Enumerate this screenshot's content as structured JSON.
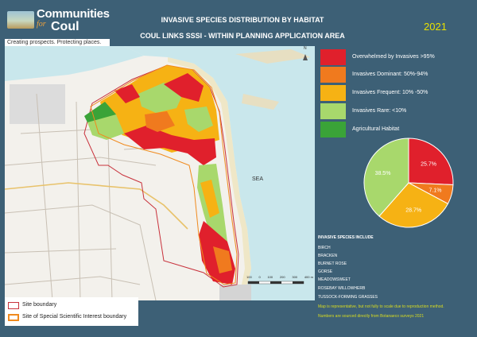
{
  "logo": {
    "title": "Communities",
    "for": "for",
    "coul": "Coul",
    "tagline": "Creating prospects. Protecting places."
  },
  "title_line1": "INVASIVE SPECIES DISTRIBUTION BY HABITAT",
  "title_line2": "COUL LINKS SSSI - WITHIN PLANNING APPLICATION AREA",
  "year": "2021",
  "map": {
    "sea_label": "SEA",
    "north_label": "N",
    "scale_ticks": [
      "100",
      "0",
      "100",
      "200",
      "300",
      "400 m"
    ]
  },
  "boundary_legend": [
    {
      "label": "Site boundary",
      "color": "#c8323c"
    },
    {
      "label": "Site of Special Scientific Interest boundary",
      "color": "#f08a1e"
    }
  ],
  "habitat_legend": [
    {
      "label": "Overwhelmed by Invasives >95%",
      "color": "#e0202c"
    },
    {
      "label": "Invasives Dominant: 50%-94%",
      "color": "#f07a1e"
    },
    {
      "label": "Invasives Frequent: 10% -50%",
      "color": "#f6b214"
    },
    {
      "label": "Invasives Rare: <10%",
      "color": "#a8d86c"
    },
    {
      "label": "Agricultural Habitat",
      "color": "#3aa338"
    }
  ],
  "chart_data": {
    "type": "pie",
    "categories": [
      "Overwhelmed by Invasives >95%",
      "Invasives Dominant: 50%-94%",
      "Invasives Frequent: 10% -50%",
      "Invasives Rare: <10%"
    ],
    "values": [
      25.7,
      7.1,
      28.7,
      38.5
    ],
    "labels": [
      "25.7%",
      "7.1%",
      "28.7%",
      "38.5%"
    ],
    "colors": [
      "#e0202c",
      "#f07a1e",
      "#f6b214",
      "#a8d86c"
    ],
    "title": "",
    "start_angle_deg": 0
  },
  "species_heading": "INVASIVE SPECIES  INCLUDE",
  "species": [
    "BIRCH",
    "BRACKEN",
    "BURNET ROSE",
    "GORSE",
    "MEADOWSWEET",
    "ROSEBAY WILLOWHERB",
    "TUSSOCK-FORMING GRASSES"
  ],
  "notes": [
    "Map is representative, but not fully to scale due to reproduction method.",
    "Numbers are sourced directly from Botanaeco surveys 2021"
  ]
}
